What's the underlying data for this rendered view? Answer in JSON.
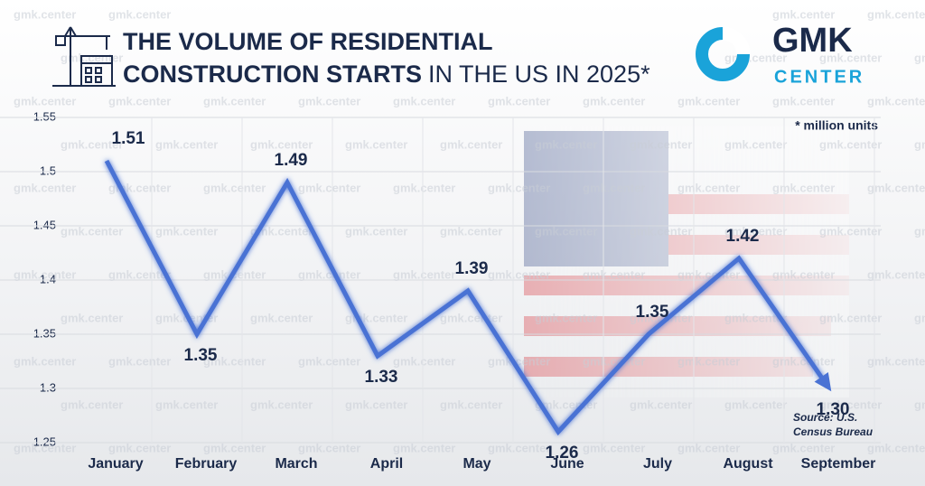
{
  "chart_data": {
    "type": "line",
    "title": [
      "THE VOLUME OF RESIDENTIAL",
      "CONSTRUCTION STARTS",
      "IN THE US IN 2025*"
    ],
    "note": "* million units",
    "source": [
      "Source: U.S.",
      "Census Bureau"
    ],
    "categories": [
      "January",
      "February",
      "March",
      "April",
      "May",
      "June",
      "July",
      "August",
      "September"
    ],
    "values": [
      1.51,
      1.35,
      1.49,
      1.33,
      1.39,
      1.26,
      1.35,
      1.42,
      1.3
    ],
    "value_labels": [
      "1.51",
      "1.35",
      "1.49",
      "1.33",
      "1.39",
      "1.26",
      "1.35",
      "1.42",
      "1.30"
    ],
    "color": "#4a72d4",
    "ylim": [
      1.25,
      1.55
    ],
    "yticks": [
      1.25,
      1.3,
      1.35,
      1.4,
      1.45,
      1.5,
      1.55
    ],
    "grid": true
  },
  "logo": {
    "name": "GMK",
    "sub": "CENTER"
  },
  "watermark": "gmk.center"
}
